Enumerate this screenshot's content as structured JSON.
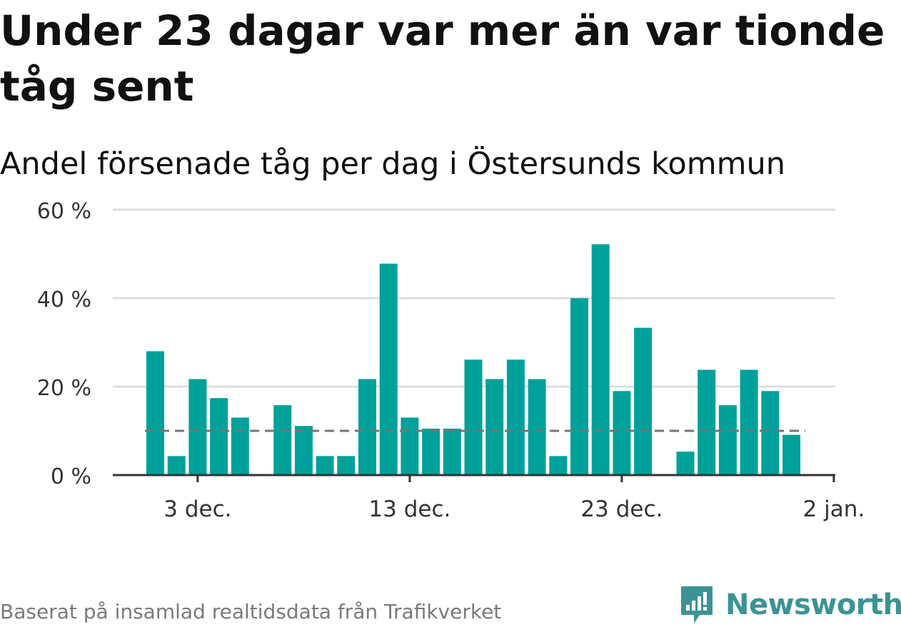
{
  "title": "Under 23 dagar var mer än var tionde tåg sent",
  "subtitle": "Andel försenade tåg per dag i Östersunds kommun",
  "source": "Baserat på insamlad realtidsdata från Trafikverket",
  "brand": "Newsworthy",
  "colors": {
    "bar": "#00a19a",
    "grid": "#dddddd",
    "axis": "#333333",
    "reference_line": "#757575",
    "brand": "#3c9393",
    "source_text": "#7a7a7a"
  },
  "chart_data": {
    "type": "bar",
    "y_unit": "%",
    "ylim": [
      0,
      60
    ],
    "y_ticks": [
      0,
      20,
      40,
      60
    ],
    "y_tick_labels": [
      "0 %",
      "20 %",
      "40 %",
      "60 %"
    ],
    "grid": true,
    "x": [
      "1 dec.",
      "2 dec.",
      "3 dec.",
      "4 dec.",
      "5 dec.",
      "6 dec.",
      "7 dec.",
      "8 dec.",
      "9 dec.",
      "10 dec.",
      "11 dec.",
      "12 dec.",
      "13 dec.",
      "14 dec.",
      "15 dec.",
      "16 dec.",
      "17 dec.",
      "18 dec.",
      "19 dec.",
      "20 dec.",
      "21 dec.",
      "22 dec.",
      "23 dec.",
      "24 dec.",
      "25 dec.",
      "26 dec.",
      "27 dec.",
      "28 dec.",
      "29 dec.",
      "30 dec.",
      "31 dec.",
      "1 jan."
    ],
    "values": [
      28,
      4.3,
      21.7,
      17.4,
      13,
      null,
      15.8,
      11.1,
      4.3,
      4.3,
      21.7,
      47.8,
      13,
      10.5,
      10.5,
      26.1,
      21.7,
      26.1,
      21.7,
      4.3,
      40,
      52.2,
      19,
      33.3,
      null,
      5.3,
      23.8,
      15.8,
      23.8,
      19,
      9.1,
      null
    ],
    "x_tick_labels": [
      "3 dec.",
      "13 dec.",
      "23 dec.",
      "2 jan."
    ],
    "reference_value": 10
  }
}
